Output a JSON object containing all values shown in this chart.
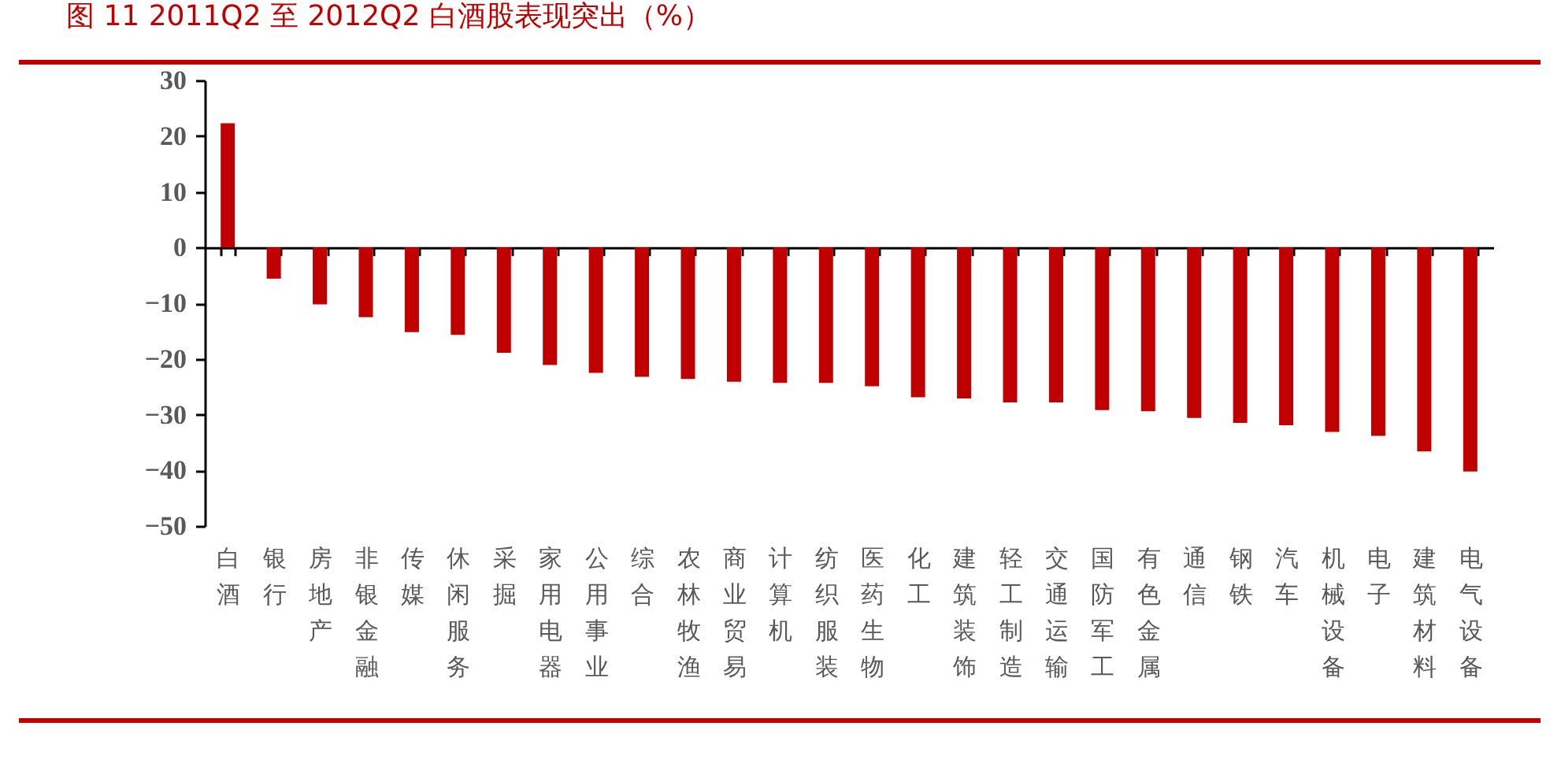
{
  "chart_data": {
    "type": "bar",
    "title": "图 11  2011Q2 至 2012Q2 白酒股表现突出（%）",
    "categories": [
      "白酒",
      "银行",
      "房地产",
      "非银金融",
      "传媒",
      "休闲服务",
      "采掘",
      "家用电器",
      "公用事业",
      "综合",
      "农林牧渔",
      "商业贸易",
      "计算机",
      "纺织服装",
      "医药生物",
      "化工",
      "建筑装饰",
      "轻工制造",
      "交通运输",
      "国防军工",
      "有色金属",
      "通信",
      "钢铁",
      "汽车",
      "机械设备",
      "电子",
      "建筑材料",
      "电气设备"
    ],
    "values": [
      22.3,
      -5.6,
      -10.2,
      -12.5,
      -15.2,
      -15.7,
      -18.9,
      -21.1,
      -22.5,
      -23.2,
      -23.6,
      -24.1,
      -24.3,
      -24.3,
      -24.9,
      -26.9,
      -27.1,
      -27.8,
      -27.8,
      -29.2,
      -29.4,
      -30.6,
      -31.5,
      -31.9,
      -33.1,
      -33.8,
      -36.6,
      -40.2
    ],
    "color": "#c00000",
    "ylim": [
      -50,
      30
    ],
    "yticks": [
      -50,
      -40,
      -30,
      -20,
      -10,
      0,
      10,
      20,
      30
    ]
  }
}
